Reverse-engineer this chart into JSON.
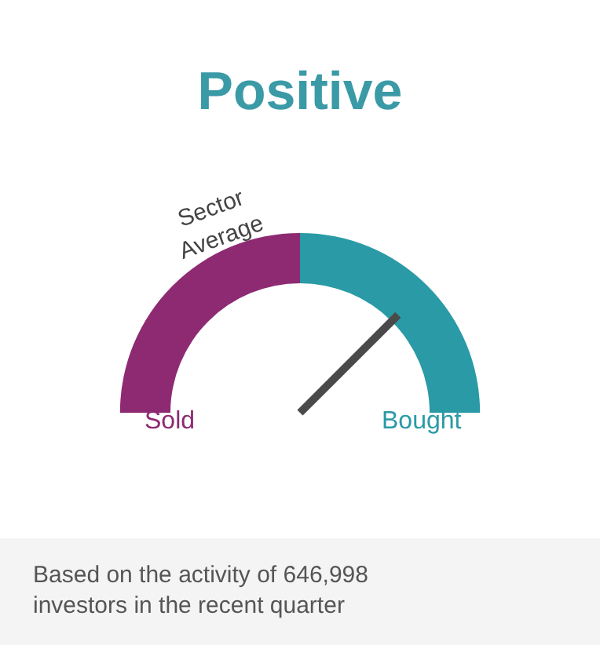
{
  "chart_data": {
    "type": "donut",
    "title": "Positive",
    "categories": [
      "Sold",
      "Bought"
    ],
    "values": [
      50,
      50
    ],
    "colors": [
      "#8e2a72",
      "#2a9aa6"
    ],
    "needle": "Bought",
    "annotations": [
      "Sector Average",
      "Based on the activity of 646,998 investors in the recent quarter"
    ]
  }
}
